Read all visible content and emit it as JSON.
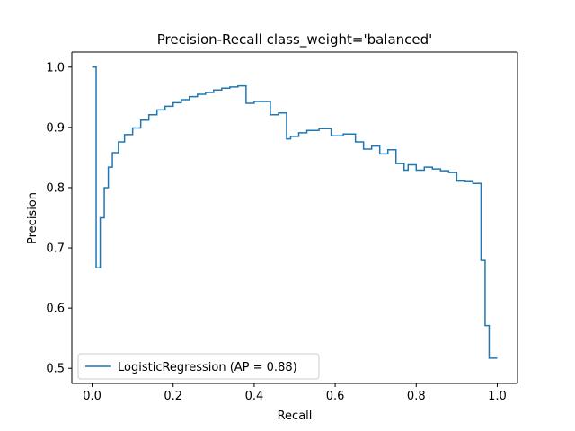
{
  "chart_data": {
    "type": "line",
    "title": "Precision-Recall class_weight='balanced'",
    "xlabel": "Recall",
    "ylabel": "Precision",
    "xlim": [
      -0.05,
      1.05
    ],
    "ylim": [
      0.475,
      1.025
    ],
    "xticks": [
      0.0,
      0.2,
      0.4,
      0.6,
      0.8,
      1.0
    ],
    "xtick_labels": [
      "0.0",
      "0.2",
      "0.4",
      "0.6",
      "0.8",
      "1.0"
    ],
    "yticks": [
      0.5,
      0.6,
      0.7,
      0.8,
      0.9,
      1.0
    ],
    "ytick_labels": [
      "0.5",
      "0.6",
      "0.7",
      "0.8",
      "0.9",
      "1.0"
    ],
    "grid": false,
    "legend_position": "lower-left",
    "drawstyle": "steps-post",
    "series": [
      {
        "name": "LogisticRegression (AP = 0.88)",
        "color": "#1f77b4",
        "x": [
          1.0,
          0.99,
          0.98,
          0.97,
          0.96,
          0.94,
          0.92,
          0.9,
          0.88,
          0.86,
          0.84,
          0.82,
          0.8,
          0.78,
          0.77,
          0.75,
          0.73,
          0.71,
          0.69,
          0.67,
          0.65,
          0.62,
          0.59,
          0.56,
          0.53,
          0.51,
          0.49,
          0.48,
          0.46,
          0.44,
          0.4,
          0.38,
          0.36,
          0.34,
          0.32,
          0.3,
          0.28,
          0.26,
          0.24,
          0.22,
          0.2,
          0.18,
          0.16,
          0.14,
          0.12,
          0.1,
          0.08,
          0.065,
          0.05,
          0.04,
          0.03,
          0.02,
          0.01,
          0.0
        ],
        "y": [
          0.517,
          0.517,
          0.571,
          0.679,
          0.807,
          0.81,
          0.811,
          0.825,
          0.828,
          0.831,
          0.834,
          0.829,
          0.838,
          0.829,
          0.84,
          0.863,
          0.856,
          0.869,
          0.864,
          0.876,
          0.889,
          0.886,
          0.898,
          0.895,
          0.891,
          0.885,
          0.881,
          0.924,
          0.921,
          0.943,
          0.94,
          0.969,
          0.967,
          0.965,
          0.962,
          0.958,
          0.955,
          0.951,
          0.946,
          0.941,
          0.935,
          0.929,
          0.921,
          0.912,
          0.899,
          0.888,
          0.876,
          0.858,
          0.834,
          0.8,
          0.75,
          0.667,
          1.0,
          1.0
        ]
      }
    ]
  }
}
